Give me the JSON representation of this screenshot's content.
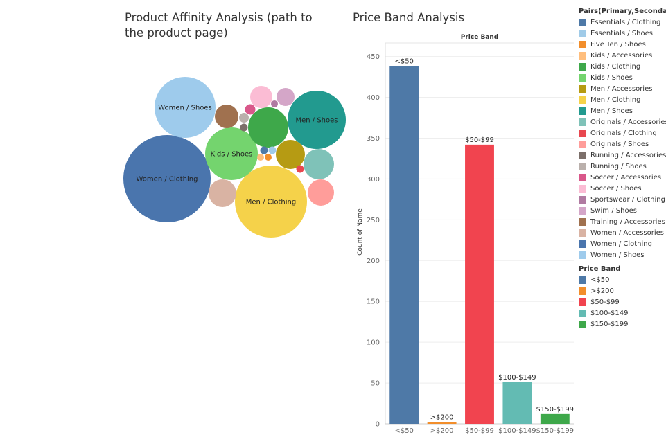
{
  "bubble_chart": {
    "title": "Product Affinity Analysis (path to the product page)"
  },
  "bar_chart": {
    "title": "Price Band Analysis"
  },
  "legend_pairs": {
    "title": "Pairs(Primary,Secondary)",
    "items": [
      {
        "label": "Essentials / Clothing",
        "color": "#4e79a7"
      },
      {
        "label": "Essentials / Shoes",
        "color": "#a0cbe8"
      },
      {
        "label": "Five Ten / Shoes",
        "color": "#f28e2b"
      },
      {
        "label": "Kids / Accessories",
        "color": "#ffbe7d"
      },
      {
        "label": "Kids / Clothing",
        "color": "#3ea84a"
      },
      {
        "label": "Kids / Shoes",
        "color": "#74d46e"
      },
      {
        "label": "Men / Accessories",
        "color": "#b69b13"
      },
      {
        "label": "Men / Clothing",
        "color": "#f5d24a"
      },
      {
        "label": "Men / Shoes",
        "color": "#229a8f"
      },
      {
        "label": "Originals / Accessories",
        "color": "#7fc2b8"
      },
      {
        "label": "Originals / Clothing",
        "color": "#e8474f"
      },
      {
        "label": "Originals / Shoes",
        "color": "#ff9d9a"
      },
      {
        "label": "Running / Accessories",
        "color": "#7c6f6a"
      },
      {
        "label": "Running / Shoes",
        "color": "#bab0ac"
      },
      {
        "label": "Soccer / Accessories",
        "color": "#d9578a"
      },
      {
        "label": "Soccer / Shoes",
        "color": "#fbbcd4"
      },
      {
        "label": "Sportswear / Clothing",
        "color": "#b07aa1"
      },
      {
        "label": "Swim / Shoes",
        "color": "#d4a6c8"
      },
      {
        "label": "Training / Accessories",
        "color": "#a0714f"
      },
      {
        "label": "Women / Accessories",
        "color": "#d9b3a3"
      },
      {
        "label": "Women / Clothing",
        "color": "#4a75ad"
      },
      {
        "label": "Women / Shoes",
        "color": "#9ecbec"
      }
    ]
  },
  "legend_band": {
    "title": "Price Band",
    "items": [
      {
        "label": "<$50",
        "color": "#4e79a7"
      },
      {
        "label": ">$200",
        "color": "#f28e2b"
      },
      {
        "label": "$50-$99",
        "color": "#f1444f"
      },
      {
        "label": "$100-$149",
        "color": "#63bbb3"
      },
      {
        "label": "$150-$199",
        "color": "#3ea84a"
      }
    ]
  },
  "chart_data": [
    {
      "type": "bubble",
      "title": "Product Affinity Analysis (path to the product page)",
      "bubbles": [
        {
          "label": "Women / Clothing",
          "show_label": true,
          "color": "#4a75ad"
        },
        {
          "label": "Women / Shoes",
          "show_label": true,
          "color": "#9ecbec"
        },
        {
          "label": "Men / Clothing",
          "show_label": true,
          "color": "#f5d24a"
        },
        {
          "label": "Men / Shoes",
          "show_label": true,
          "color": "#229a8f"
        },
        {
          "label": "Kids / Shoes",
          "show_label": true,
          "color": "#74d46e"
        },
        {
          "label": "Kids / Clothing",
          "show_label": false,
          "color": "#3ea84a"
        },
        {
          "label": "Men / Accessories",
          "show_label": false,
          "color": "#b69b13"
        },
        {
          "label": "Originals / Accessories",
          "show_label": false,
          "color": "#7fc2b8"
        },
        {
          "label": "Originals / Shoes",
          "show_label": false,
          "color": "#ff9d9a"
        },
        {
          "label": "Women / Accessories",
          "show_label": false,
          "color": "#d9b3a3"
        },
        {
          "label": "Training / Accessories",
          "show_label": false,
          "color": "#a0714f"
        },
        {
          "label": "Soccer / Shoes",
          "show_label": false,
          "color": "#fbbcd4"
        },
        {
          "label": "Swim / Shoes",
          "show_label": false,
          "color": "#d4a6c8"
        },
        {
          "label": "Soccer / Accessories",
          "show_label": false,
          "color": "#d9578a"
        },
        {
          "label": "Sportswear / Clothing",
          "show_label": false,
          "color": "#b07aa1"
        },
        {
          "label": "Running / Shoes",
          "show_label": false,
          "color": "#bab0ac"
        },
        {
          "label": "Running / Accessories",
          "show_label": false,
          "color": "#7c6f6a"
        },
        {
          "label": "Essentials / Clothing",
          "show_label": false,
          "color": "#4e79a7"
        },
        {
          "label": "Essentials / Shoes",
          "show_label": false,
          "color": "#a0cbe8"
        },
        {
          "label": "Kids / Accessories",
          "show_label": false,
          "color": "#ffbe7d"
        },
        {
          "label": "Five Ten / Shoes",
          "show_label": false,
          "color": "#f28e2b"
        },
        {
          "label": "Originals / Clothing",
          "show_label": false,
          "color": "#e8474f"
        }
      ]
    },
    {
      "type": "bar",
      "title": "Price Band Analysis",
      "header": "Price Band",
      "ylabel": "Count of Name",
      "ylim": [
        0,
        470
      ],
      "yticks": [
        0,
        50,
        100,
        150,
        200,
        250,
        300,
        350,
        400,
        450
      ],
      "grid": true,
      "categories": [
        "<$50",
        ">$200",
        "$50-$99",
        "$100-$149",
        "$150-$199"
      ],
      "values": [
        438,
        2,
        342,
        51,
        12
      ],
      "colors": [
        "#4e79a7",
        "#f28e2b",
        "#f1444f",
        "#63bbb3",
        "#3ea84a"
      ]
    }
  ]
}
